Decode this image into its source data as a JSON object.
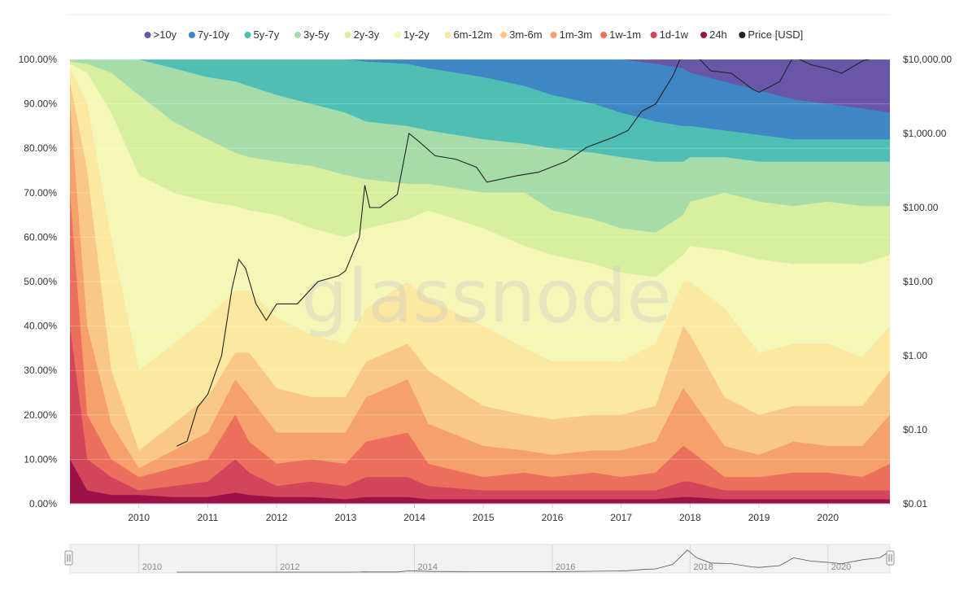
{
  "watermark": "glassnode",
  "chart_data": {
    "type": "area",
    "subtype": "stacked-percent-area-with-price-line",
    "grid": true,
    "legend_position": "top-center",
    "x_ticks": [
      "2010",
      "2011",
      "2012",
      "2013",
      "2014",
      "2015",
      "2016",
      "2017",
      "2018",
      "2019",
      "2020"
    ],
    "y_left": {
      "ticks": [
        "0.00%",
        "10.00%",
        "20.00%",
        "30.00%",
        "40.00%",
        "50.00%",
        "60.00%",
        "70.00%",
        "80.00%",
        "90.00%",
        "100.00%"
      ],
      "range": [
        0,
        100
      ]
    },
    "y_right": {
      "scale": "log",
      "ticks": [
        "$0.01",
        "$0.10",
        "$1.00",
        "$10.00",
        "$100.00",
        "$1,000.00",
        "$10,000.00"
      ],
      "tick_values": [
        0.01,
        0.1,
        1,
        10,
        100,
        1000,
        10000
      ],
      "range": [
        0.01,
        10000
      ]
    },
    "x_range": [
      2009.0,
      2020.9
    ],
    "series_order_bottom_to_top": [
      "24h",
      "1d-1w",
      "1w-1m",
      "1m-3m",
      "3m-6m",
      "6m-12m",
      "1y-2y",
      "2y-3y",
      "3y-5y",
      "5y-7y",
      "7y-10y",
      ">10y"
    ],
    "cumulative_top_boundaries": {
      "x": [
        2009.0,
        2009.25,
        2009.6,
        2010.0,
        2010.5,
        2011.0,
        2011.4,
        2011.6,
        2012.0,
        2012.5,
        2013.0,
        2013.3,
        2013.9,
        2014.2,
        2015.0,
        2015.6,
        2016.0,
        2016.6,
        2017.0,
        2017.5,
        2017.9,
        2018.0,
        2018.5,
        2019.0,
        2019.5,
        2020.0,
        2020.5,
        2020.9
      ],
      "24h": [
        10,
        3,
        2,
        2,
        1.5,
        1.5,
        2.5,
        2,
        1.5,
        1.5,
        1,
        1.5,
        1.5,
        1,
        1,
        1,
        1,
        1,
        1,
        1,
        1.5,
        1.5,
        1,
        1,
        1,
        1,
        1,
        1
      ],
      "1d-1w": [
        40,
        10,
        6,
        3,
        4,
        5,
        10,
        7,
        4,
        5,
        4,
        6,
        6,
        4,
        3,
        3,
        3,
        3,
        3,
        3,
        5,
        5,
        3,
        3,
        3,
        3,
        3,
        3
      ],
      "1w-1m": [
        70,
        20,
        10,
        6,
        8,
        10,
        20,
        14,
        9,
        10,
        9,
        14,
        16,
        9,
        6,
        7,
        6,
        7,
        6,
        7,
        13,
        12,
        6,
        6,
        7,
        7,
        6,
        9
      ],
      "1m-3m": [
        90,
        40,
        18,
        8,
        12,
        16,
        28,
        24,
        16,
        16,
        16,
        24,
        28,
        18,
        13,
        12,
        11,
        12,
        12,
        14,
        26,
        24,
        13,
        11,
        14,
        13,
        13,
        20
      ],
      "3m-6m": [
        95,
        75,
        30,
        12,
        18,
        24,
        34,
        34,
        26,
        24,
        24,
        32,
        36,
        30,
        22,
        20,
        19,
        20,
        20,
        22,
        40,
        38,
        24,
        20,
        22,
        22,
        22,
        30
      ],
      "6m-12m": [
        98,
        90,
        60,
        30,
        36,
        42,
        48,
        48,
        42,
        38,
        36,
        44,
        50,
        46,
        40,
        35,
        32,
        32,
        32,
        36,
        50,
        50,
        44,
        34,
        36,
        36,
        33,
        40
      ],
      "1y-2y": [
        99,
        97,
        88,
        74,
        70,
        68,
        67,
        66,
        65,
        62,
        60,
        62,
        64,
        66,
        62,
        58,
        56,
        54,
        52,
        51,
        56,
        58,
        57,
        55,
        54,
        54,
        54,
        56
      ],
      "2y-3y": [
        99.5,
        99,
        97,
        92,
        86,
        82,
        79,
        78,
        77,
        76,
        74,
        73,
        72,
        72,
        70,
        70,
        66,
        64,
        62,
        61,
        65,
        68,
        70,
        68,
        67,
        68,
        67,
        67
      ],
      "3y-5y": [
        100,
        100,
        100,
        100,
        98,
        96,
        95,
        94,
        92,
        90,
        88,
        86,
        85,
        84,
        82,
        81,
        80,
        79,
        78,
        77,
        77,
        78,
        78,
        77,
        77,
        77,
        77,
        77
      ],
      "5y-7y": [
        100,
        100,
        100,
        100,
        100,
        100,
        100,
        100,
        100,
        100,
        100,
        99.5,
        99,
        98,
        96,
        94,
        92,
        90,
        88,
        86,
        85,
        85,
        84,
        83,
        82,
        82,
        82,
        82
      ],
      "7y-10y": [
        100,
        100,
        100,
        100,
        100,
        100,
        100,
        100,
        100,
        100,
        100,
        100,
        100,
        100,
        100,
        100,
        100,
        100,
        100,
        99,
        98,
        97,
        95,
        93,
        91,
        90,
        89,
        88
      ],
      ">10y": [
        100,
        100,
        100,
        100,
        100,
        100,
        100,
        100,
        100,
        100,
        100,
        100,
        100,
        100,
        100,
        100,
        100,
        100,
        100,
        100,
        100,
        100,
        100,
        100,
        100,
        100,
        100,
        100
      ]
    },
    "series": [
      {
        "name": ">10y",
        "color": "#6a56a8"
      },
      {
        "name": "7y-10y",
        "color": "#3e86c4"
      },
      {
        "name": "5y-7y",
        "color": "#4fbfb5"
      },
      {
        "name": "3y-5y",
        "color": "#a6dca9"
      },
      {
        "name": "2y-3y",
        "color": "#d8ef9f"
      },
      {
        "name": "1y-2y",
        "color": "#f5f7b8"
      },
      {
        "name": "6m-12m",
        "color": "#fbe8a1"
      },
      {
        "name": "3m-6m",
        "color": "#fac886"
      },
      {
        "name": "1m-3m",
        "color": "#f6a06b"
      },
      {
        "name": "1w-1m",
        "color": "#ec6f5d"
      },
      {
        "name": "1d-1w",
        "color": "#d2455a"
      },
      {
        "name": "24h",
        "color": "#9a1248"
      },
      {
        "name": "Price [USD]",
        "color": "#222222"
      }
    ],
    "price_usd": {
      "x": [
        2010.55,
        2010.7,
        2010.85,
        2011.0,
        2011.2,
        2011.35,
        2011.45,
        2011.55,
        2011.7,
        2011.85,
        2012.0,
        2012.3,
        2012.6,
        2012.9,
        2013.0,
        2013.2,
        2013.28,
        2013.35,
        2013.5,
        2013.75,
        2013.92,
        2014.05,
        2014.3,
        2014.6,
        2014.9,
        2015.05,
        2015.5,
        2015.8,
        2016.2,
        2016.5,
        2016.9,
        2017.1,
        2017.3,
        2017.5,
        2017.75,
        2017.96,
        2018.1,
        2018.3,
        2018.6,
        2018.9,
        2019.0,
        2019.3,
        2019.5,
        2019.75,
        2020.0,
        2020.2,
        2020.5,
        2020.75,
        2020.9
      ],
      "y": [
        0.06,
        0.07,
        0.2,
        0.3,
        1.0,
        8.0,
        20.0,
        15.0,
        5.0,
        3.0,
        5.0,
        5.0,
        10.0,
        12.0,
        14.0,
        40.0,
        200.0,
        100.0,
        100.0,
        150.0,
        1000.0,
        800.0,
        500.0,
        450.0,
        350.0,
        220.0,
        270.0,
        300.0,
        420.0,
        650.0,
        900.0,
        1100.0,
        2000.0,
        2500.0,
        6000.0,
        17000.0,
        11000.0,
        7000.0,
        6500.0,
        4000.0,
        3600.0,
        5000.0,
        11000.0,
        8500.0,
        7500.0,
        6500.0,
        9500.0,
        11000.0,
        16000.0
      ]
    }
  },
  "navigator": {
    "labels": [
      "2010",
      "2012",
      "2014",
      "2016",
      "2018",
      "2020"
    ]
  }
}
